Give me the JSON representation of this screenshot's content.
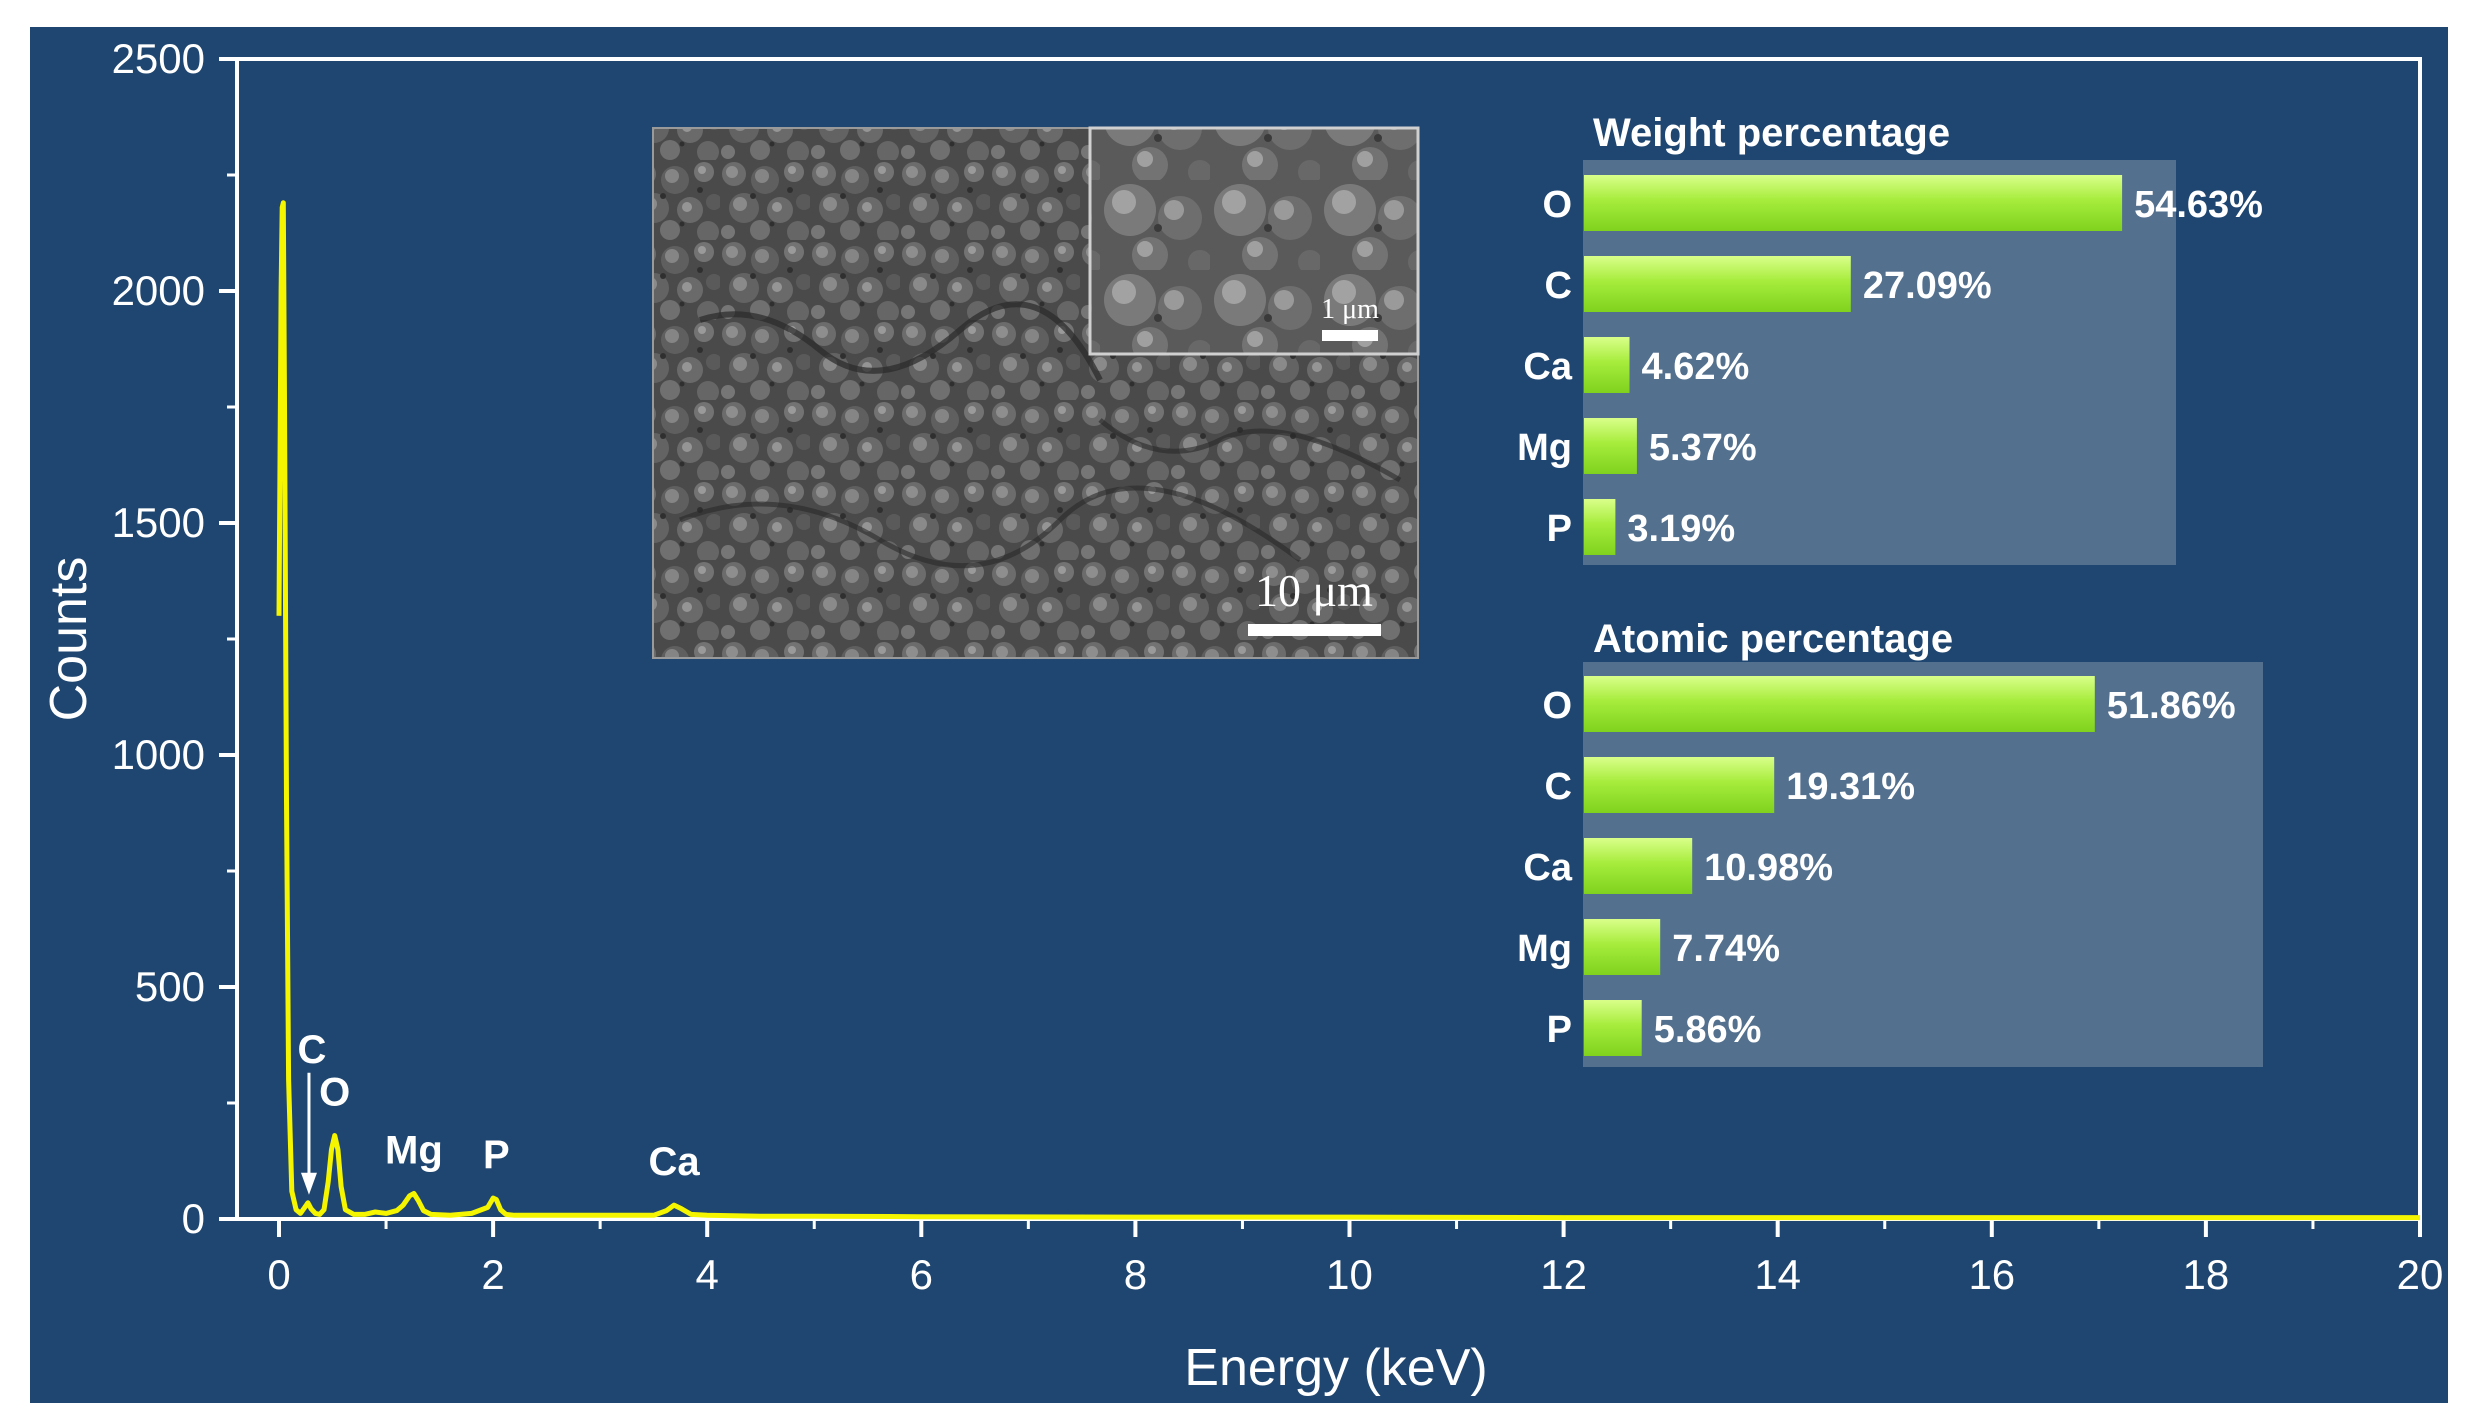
{
  "colors": {
    "background": "#1f4670",
    "spectrum": "#f5f500",
    "bar_fill": "#8fe02a",
    "bar_highlight": "#d9ff8a",
    "panel": "#5d7893",
    "axis": "#ffffff",
    "sem_dark": "#3f3f3f",
    "sem_light": "#8a8a8a"
  },
  "chart_data": [
    {
      "type": "line",
      "xlabel": "Energy (keV)",
      "ylabel": "Counts",
      "xlim": [
        0,
        20
      ],
      "ylim": [
        0,
        2500
      ],
      "xticks": [
        "0",
        "2",
        "4",
        "6",
        "8",
        "10",
        "12",
        "14",
        "16",
        "18",
        "20"
      ],
      "yticks": [
        "0",
        "500",
        "1000",
        "1500",
        "2000",
        "2500"
      ],
      "grid": false,
      "series": [
        {
          "x": [
            0.0,
            0.02,
            0.03,
            0.04,
            0.05,
            0.07,
            0.09,
            0.12,
            0.16,
            0.2,
            0.24,
            0.27,
            0.3,
            0.34,
            0.38,
            0.42,
            0.46,
            0.49,
            0.52,
            0.55,
            0.58,
            0.62,
            0.7,
            0.8,
            0.9,
            1.0,
            1.1,
            1.16,
            1.22,
            1.26,
            1.3,
            1.35,
            1.42,
            1.6,
            1.8,
            1.95,
            2.0,
            2.03,
            2.07,
            2.12,
            2.2,
            2.5,
            3.0,
            3.5,
            3.62,
            3.69,
            3.76,
            3.85,
            4.0,
            4.5,
            5.0,
            6.0,
            8.0,
            10.0,
            12.0,
            14.0,
            16.0,
            18.0,
            20.0
          ],
          "y": [
            1300,
            2000,
            2180,
            2190,
            1800,
            900,
            300,
            60,
            20,
            12,
            25,
            35,
            22,
            12,
            10,
            20,
            80,
            150,
            180,
            150,
            70,
            20,
            10,
            10,
            15,
            12,
            18,
            30,
            50,
            55,
            40,
            18,
            10,
            8,
            12,
            25,
            45,
            42,
            20,
            10,
            8,
            8,
            8,
            8,
            18,
            30,
            22,
            10,
            8,
            6,
            6,
            5,
            4,
            4,
            3,
            3,
            3,
            3,
            3
          ]
        }
      ],
      "annotations": [
        {
          "text": "C",
          "x": 0.28,
          "y": 35,
          "arrow": true
        },
        {
          "text": "O",
          "x": 0.52,
          "y": 180
        },
        {
          "text": "Mg",
          "x": 1.26,
          "y": 55
        },
        {
          "text": "P",
          "x": 2.03,
          "y": 45
        },
        {
          "text": "Ca",
          "x": 3.69,
          "y": 30
        }
      ]
    },
    {
      "type": "bar",
      "orientation": "horizontal",
      "title": "Weight percentage",
      "categories": [
        "O",
        "C",
        "Ca",
        "Mg",
        "P"
      ],
      "values": [
        54.63,
        27.09,
        4.62,
        5.37,
        3.19
      ],
      "value_labels": [
        "54.63%",
        "27.09%",
        "4.62%",
        "5.37%",
        "3.19%"
      ]
    },
    {
      "type": "bar",
      "orientation": "horizontal",
      "title": "Atomic percentage",
      "categories": [
        "O",
        "C",
        "Ca",
        "Mg",
        "P"
      ],
      "values": [
        51.86,
        19.31,
        10.98,
        7.74,
        5.86
      ],
      "value_labels": [
        "51.86%",
        "19.31%",
        "10.98%",
        "7.74%",
        "5.86%"
      ]
    }
  ],
  "sem_image": {
    "main_scale_label": "10 μm",
    "inset_scale_label": "1 μm"
  }
}
